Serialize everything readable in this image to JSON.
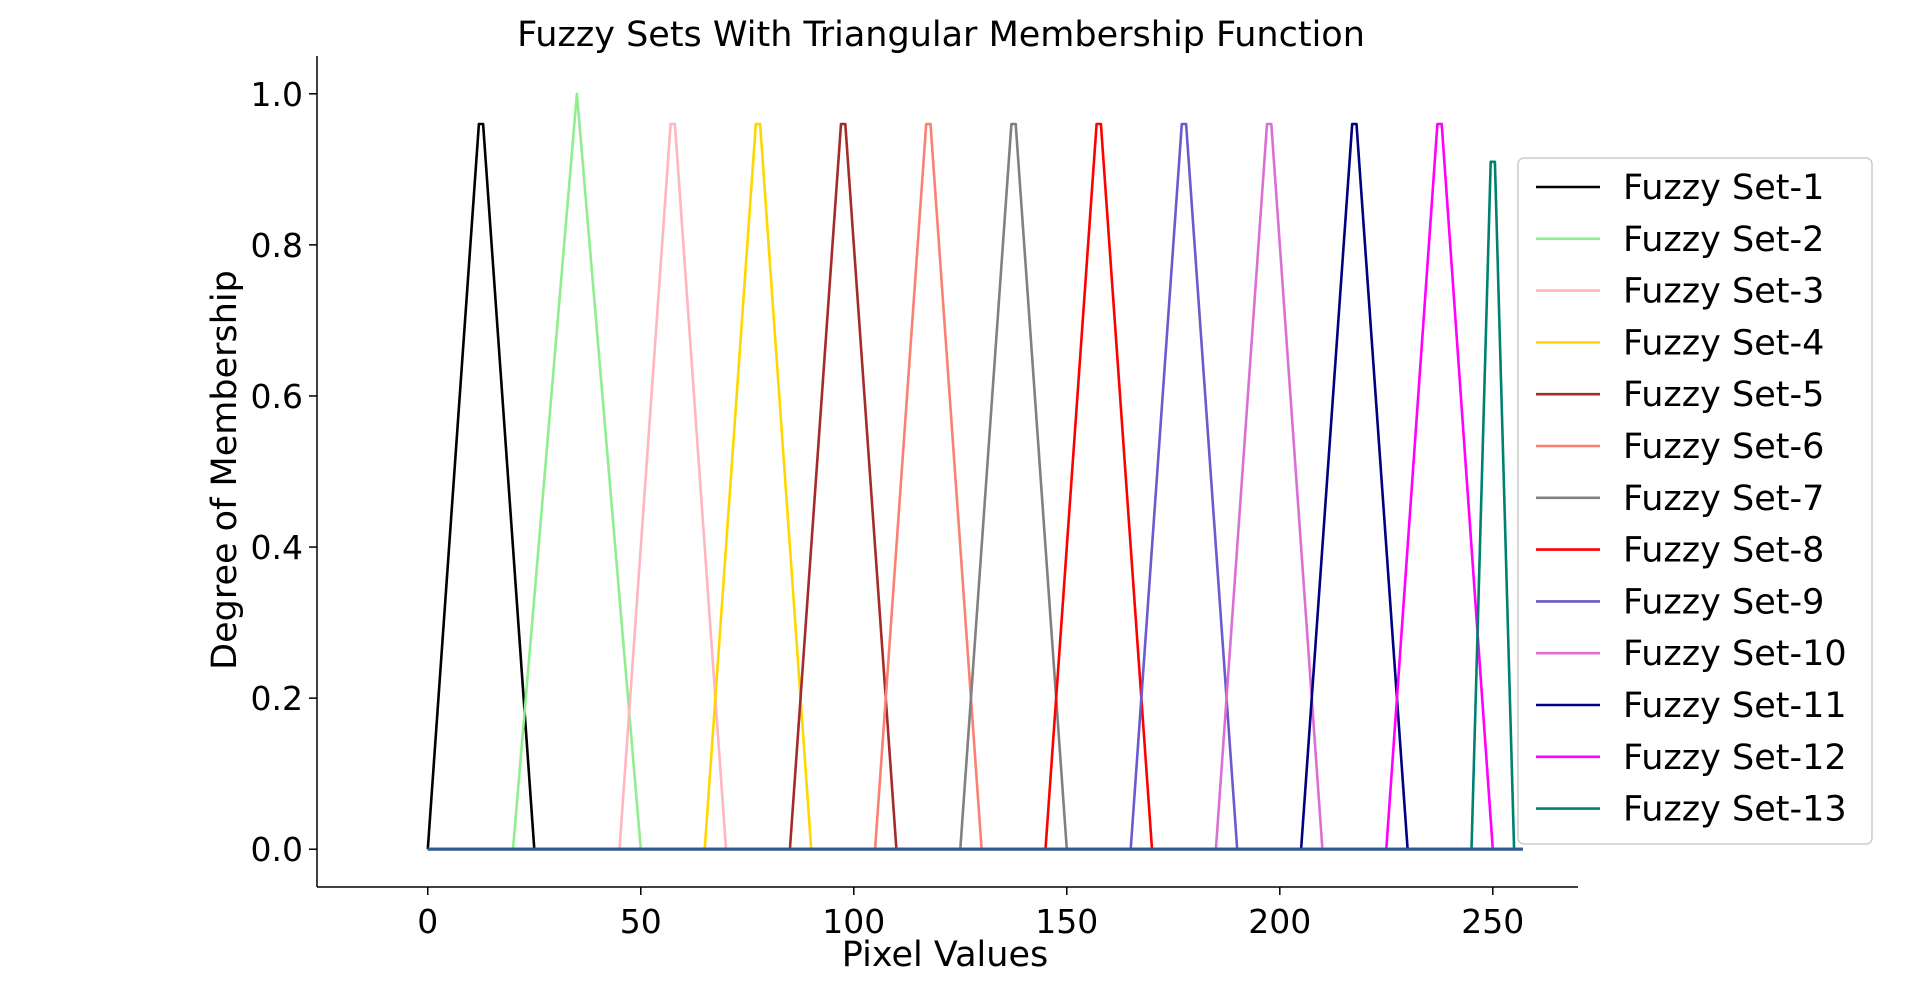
{
  "chart_data": {
    "type": "line",
    "title": "Fuzzy Sets With Triangular Membership Function",
    "xlabel": "Pixel Values",
    "ylabel": "Degree of Membership",
    "xlim": [
      -26,
      270
    ],
    "ylim": [
      -0.05,
      1.05
    ],
    "xticks": [
      0,
      50,
      100,
      150,
      200,
      250
    ],
    "xtick_labels": [
      "0",
      "50",
      "100",
      "150",
      "200",
      "250"
    ],
    "yticks": [
      0.0,
      0.2,
      0.4,
      0.6,
      0.8,
      1.0
    ],
    "ytick_labels": [
      "0.0",
      "0.2",
      "0.4",
      "0.6",
      "0.8",
      "1.0"
    ],
    "grid": false,
    "legend_position": "right",
    "baseline": {
      "x": [
        0,
        257
      ],
      "y": [
        0,
        0
      ],
      "color": "#2f5d8a"
    },
    "series": [
      {
        "name": "Fuzzy Set-1",
        "color": "#000000",
        "x": [
          0,
          12,
          13,
          25,
          257
        ],
        "y": [
          0,
          0.96,
          0.96,
          0,
          0
        ]
      },
      {
        "name": "Fuzzy Set-2",
        "color": "#90ee90",
        "x": [
          0,
          20,
          35,
          50,
          257
        ],
        "y": [
          0,
          0,
          1.0,
          0,
          0
        ]
      },
      {
        "name": "Fuzzy Set-3",
        "color": "#ffb6c1",
        "x": [
          0,
          45,
          57,
          58,
          70,
          257
        ],
        "y": [
          0,
          0,
          0.96,
          0.96,
          0,
          0
        ]
      },
      {
        "name": "Fuzzy Set-4",
        "color": "#ffd700",
        "x": [
          0,
          65,
          77,
          78,
          90,
          257
        ],
        "y": [
          0,
          0,
          0.96,
          0.96,
          0,
          0
        ]
      },
      {
        "name": "Fuzzy Set-5",
        "color": "#a52a2a",
        "x": [
          0,
          85,
          97,
          98,
          110,
          257
        ],
        "y": [
          0,
          0,
          0.96,
          0.96,
          0,
          0
        ]
      },
      {
        "name": "Fuzzy Set-6",
        "color": "#fa8072",
        "x": [
          0,
          105,
          117,
          118,
          130,
          257
        ],
        "y": [
          0,
          0,
          0.96,
          0.96,
          0,
          0
        ]
      },
      {
        "name": "Fuzzy Set-7",
        "color": "#808080",
        "x": [
          0,
          125,
          137,
          138,
          150,
          257
        ],
        "y": [
          0,
          0,
          0.96,
          0.96,
          0,
          0
        ]
      },
      {
        "name": "Fuzzy Set-8",
        "color": "#ff0000",
        "x": [
          0,
          145,
          157,
          158,
          170,
          257
        ],
        "y": [
          0,
          0,
          0.96,
          0.96,
          0,
          0
        ]
      },
      {
        "name": "Fuzzy Set-9",
        "color": "#6a5acd",
        "x": [
          0,
          165,
          177,
          178,
          190,
          257
        ],
        "y": [
          0,
          0,
          0.96,
          0.96,
          0,
          0
        ]
      },
      {
        "name": "Fuzzy Set-10",
        "color": "#da70d6",
        "x": [
          0,
          185,
          197,
          198,
          210,
          257
        ],
        "y": [
          0,
          0,
          0.96,
          0.96,
          0,
          0
        ]
      },
      {
        "name": "Fuzzy Set-11",
        "color": "#000080",
        "x": [
          0,
          205,
          217,
          218,
          230,
          257
        ],
        "y": [
          0,
          0,
          0.96,
          0.96,
          0,
          0
        ]
      },
      {
        "name": "Fuzzy Set-12",
        "color": "#ff00ff",
        "x": [
          0,
          225,
          237,
          238,
          250,
          257
        ],
        "y": [
          0,
          0,
          0.96,
          0.96,
          0,
          0
        ]
      },
      {
        "name": "Fuzzy Set-13",
        "color": "#008070",
        "x": [
          0,
          245,
          249.5,
          250.5,
          255,
          257
        ],
        "y": [
          0,
          0,
          0.91,
          0.91,
          0,
          0
        ]
      }
    ]
  }
}
